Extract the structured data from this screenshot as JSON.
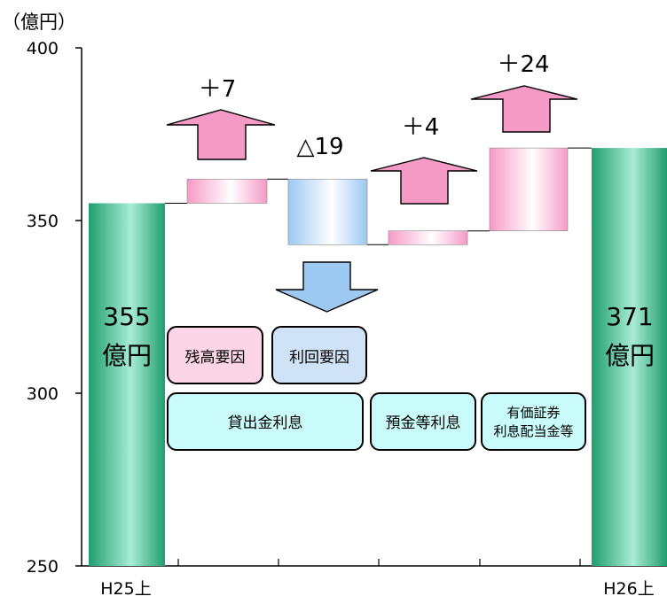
{
  "chart_data": {
    "type": "bar",
    "subtype": "waterfall",
    "unit_label": "（億円）",
    "ylim": [
      250,
      400
    ],
    "yticks": [
      250,
      300,
      350,
      400
    ],
    "categories": [
      "H25上",
      "H26上"
    ],
    "totals": [
      {
        "category": "H25上",
        "value": 355,
        "label_top": "355",
        "label_bottom": "億円"
      },
      {
        "category": "H26上",
        "value": 371,
        "label_top": "371",
        "label_bottom": "億円"
      }
    ],
    "steps": [
      {
        "from": 355,
        "to": 362,
        "style": "pink",
        "direction": "up",
        "label": "＋7"
      },
      {
        "from": 362,
        "to": 343,
        "style": "blue",
        "direction": "down",
        "label": "△19"
      },
      {
        "from": 343,
        "to": 347,
        "style": "pink",
        "direction": "up",
        "label": "＋4"
      },
      {
        "from": 347,
        "to": 371,
        "style": "pink",
        "direction": "up",
        "label": "＋24"
      }
    ],
    "legend_boxes": {
      "volume_factor": "残高要因",
      "rate_factor": "利回要因"
    },
    "category_boxes": {
      "loans": "貸出金利息",
      "deposits": "預金等利息",
      "securities_line1": "有価証券",
      "securities_line2": "利息配当金等"
    }
  },
  "colors": {
    "total_bar_edge": "#1f9e6e",
    "total_bar_mid": "#a9ecd6",
    "increase": "#f59ac5",
    "decrease": "#9cc8f2",
    "box_pink": "#fbd4e6",
    "box_blue": "#cfe2f6",
    "box_cyan": "#c9fbfb"
  }
}
